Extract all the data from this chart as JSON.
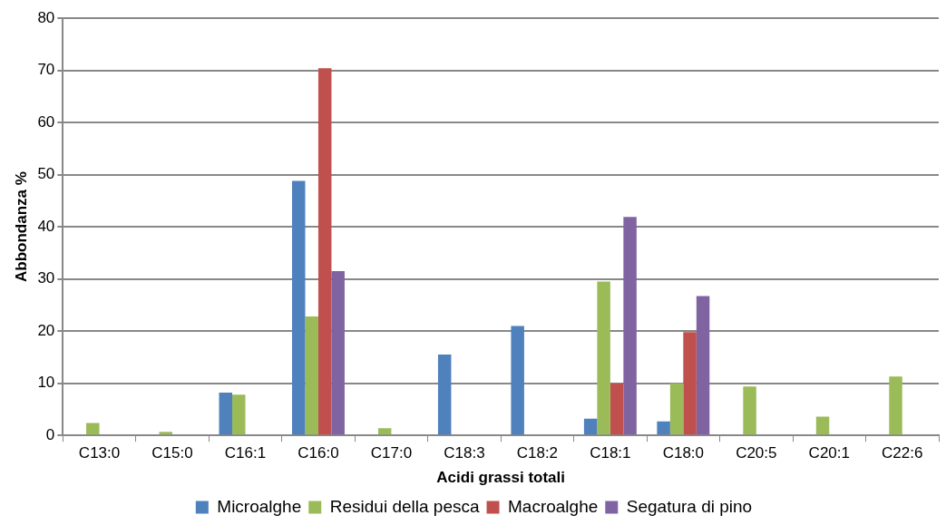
{
  "chart_data": {
    "type": "bar",
    "xlabel": "Acidi grassi totali",
    "ylabel": "Abbondanza %",
    "categories": [
      "C13:0",
      "C15:0",
      "C16:1",
      "C16:0",
      "C17:0",
      "C18:3",
      "C18:2",
      "C18:1",
      "C18:0",
      "C20:5",
      "C20:1",
      "C22:6"
    ],
    "series": [
      {
        "name": "Microalghe",
        "color": "#4f81bd",
        "values": [
          null,
          null,
          8.2,
          48.8,
          null,
          15.5,
          21.0,
          3.2,
          2.7,
          null,
          null,
          null
        ]
      },
      {
        "name": "Residui della pesca",
        "color": "#9bbb59",
        "values": [
          2.4,
          0.7,
          7.8,
          22.8,
          1.4,
          null,
          null,
          29.5,
          10.0,
          9.4,
          3.6,
          11.3
        ]
      },
      {
        "name": "Macroalghe",
        "color": "#c0504d",
        "values": [
          null,
          null,
          null,
          70.4,
          null,
          null,
          null,
          10.0,
          19.8,
          null,
          null,
          null
        ]
      },
      {
        "name": "Segatura di pino",
        "color": "#8064a2",
        "values": [
          null,
          null,
          null,
          31.5,
          null,
          null,
          null,
          41.9,
          26.7,
          null,
          null,
          null
        ]
      }
    ],
    "ylim": [
      0,
      80
    ],
    "yticks": [
      0,
      10,
      20,
      30,
      40,
      50,
      60,
      70,
      80
    ],
    "grid": "y",
    "legend": "bottom"
  }
}
